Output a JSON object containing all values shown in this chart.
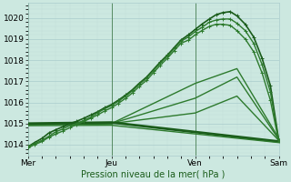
{
  "bg_color": "#cce8e0",
  "grid_color_major": "#aacccc",
  "grid_color_minor": "#c0dcd8",
  "line_color_dark": "#1a5c1a",
  "line_color_mid": "#2d7a2d",
  "title": "Pression niveau de la mer( hPa )",
  "xlim": [
    0,
    3.0
  ],
  "ylim": [
    1013.5,
    1020.7
  ],
  "yticks": [
    1014,
    1015,
    1016,
    1017,
    1018,
    1019,
    1020
  ],
  "xtick_labels": [
    "Mer",
    "Jeu",
    "Ven",
    "Sam"
  ],
  "xtick_pos": [
    0.0,
    1.0,
    2.0,
    3.0
  ],
  "series_marked": [
    {
      "x": [
        0.0,
        0.08,
        0.17,
        0.25,
        0.33,
        0.42,
        0.5,
        0.58,
        0.67,
        0.75,
        0.83,
        0.92,
        1.0,
        1.08,
        1.17,
        1.25,
        1.33,
        1.42,
        1.5,
        1.58,
        1.67,
        1.75,
        1.83,
        1.92,
        2.0,
        2.08,
        2.17,
        2.25,
        2.33,
        2.42,
        2.5,
        2.6,
        2.7,
        2.8,
        2.9,
        3.0
      ],
      "y": [
        1013.9,
        1014.1,
        1014.3,
        1014.55,
        1014.7,
        1014.85,
        1015.0,
        1015.1,
        1015.25,
        1015.4,
        1015.55,
        1015.75,
        1015.9,
        1016.1,
        1016.35,
        1016.6,
        1016.9,
        1017.2,
        1017.55,
        1017.9,
        1018.25,
        1018.6,
        1018.95,
        1019.2,
        1019.45,
        1019.7,
        1019.95,
        1020.15,
        1020.25,
        1020.3,
        1020.1,
        1019.7,
        1019.1,
        1018.1,
        1016.8,
        1014.2
      ],
      "lw": 1.2,
      "dark": true
    },
    {
      "x": [
        0.0,
        0.08,
        0.17,
        0.25,
        0.33,
        0.42,
        0.5,
        0.58,
        0.67,
        0.75,
        0.83,
        0.92,
        1.0,
        1.08,
        1.17,
        1.25,
        1.33,
        1.42,
        1.5,
        1.58,
        1.67,
        1.75,
        1.83,
        1.92,
        2.0,
        2.08,
        2.17,
        2.25,
        2.33,
        2.42,
        2.5,
        2.6,
        2.7,
        2.8,
        2.9,
        3.0
      ],
      "y": [
        1013.9,
        1014.05,
        1014.2,
        1014.4,
        1014.6,
        1014.75,
        1014.9,
        1015.0,
        1015.15,
        1015.3,
        1015.5,
        1015.7,
        1015.85,
        1016.05,
        1016.3,
        1016.55,
        1016.85,
        1017.15,
        1017.5,
        1017.85,
        1018.2,
        1018.55,
        1018.9,
        1019.1,
        1019.35,
        1019.55,
        1019.8,
        1019.9,
        1019.95,
        1019.95,
        1019.75,
        1019.4,
        1018.8,
        1017.8,
        1016.5,
        1014.2
      ],
      "lw": 1.0,
      "dark": false
    },
    {
      "x": [
        0.0,
        0.08,
        0.17,
        0.25,
        0.33,
        0.42,
        0.5,
        0.58,
        0.67,
        0.75,
        0.83,
        0.92,
        1.0,
        1.08,
        1.17,
        1.25,
        1.33,
        1.42,
        1.5,
        1.58,
        1.67,
        1.75,
        1.83,
        1.92,
        2.0,
        2.08,
        2.17,
        2.25,
        2.33,
        2.42,
        2.5,
        2.6,
        2.7,
        2.8,
        2.9,
        3.0
      ],
      "y": [
        1013.85,
        1014.0,
        1014.15,
        1014.35,
        1014.5,
        1014.65,
        1014.8,
        1014.95,
        1015.1,
        1015.25,
        1015.4,
        1015.6,
        1015.75,
        1015.95,
        1016.2,
        1016.45,
        1016.75,
        1017.05,
        1017.4,
        1017.75,
        1018.1,
        1018.45,
        1018.8,
        1018.95,
        1019.2,
        1019.4,
        1019.6,
        1019.7,
        1019.7,
        1019.65,
        1019.4,
        1019.0,
        1018.4,
        1017.4,
        1016.1,
        1014.15
      ],
      "lw": 1.0,
      "dark": false
    }
  ],
  "series_plain": [
    {
      "x": [
        0.0,
        1.0,
        2.0,
        2.5,
        3.0
      ],
      "y": [
        1014.95,
        1015.0,
        1016.9,
        1017.6,
        1014.3
      ],
      "lw": 1.0,
      "dark": false
    },
    {
      "x": [
        0.0,
        1.0,
        2.0,
        2.5,
        3.0
      ],
      "y": [
        1014.95,
        1015.0,
        1016.2,
        1017.2,
        1014.25
      ],
      "lw": 1.0,
      "dark": false
    },
    {
      "x": [
        0.0,
        1.0,
        2.0,
        2.5,
        3.0
      ],
      "y": [
        1014.95,
        1015.0,
        1015.5,
        1016.3,
        1014.2
      ],
      "lw": 1.0,
      "dark": false
    },
    {
      "x": [
        0.0,
        1.0,
        3.0
      ],
      "y": [
        1015.0,
        1015.05,
        1014.15
      ],
      "lw": 2.0,
      "dark": true
    },
    {
      "x": [
        0.0,
        1.0,
        3.0
      ],
      "y": [
        1014.9,
        1014.92,
        1014.1
      ],
      "lw": 1.0,
      "dark": false
    }
  ],
  "vlines": [
    0.0,
    1.0,
    2.0,
    3.0
  ]
}
